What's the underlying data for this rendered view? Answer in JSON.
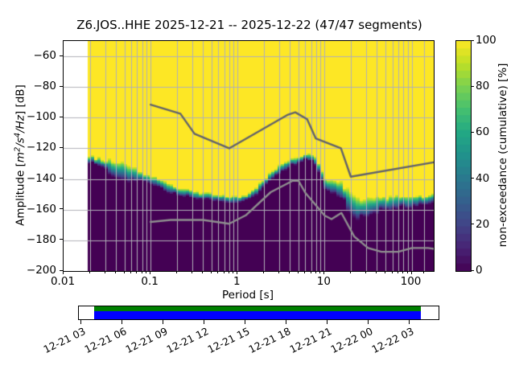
{
  "chart_data": {
    "type": "heatmap",
    "title": "Z6.JOS..HHE   2025-12-21 -- 2025-12-22  (47/47 segments)",
    "station": "Z6.JOS..HHE",
    "date_range": "2025-12-21 -- 2025-12-22",
    "segments": "47/47 segments",
    "xlabel": "Period [s]",
    "ylabel": "Amplitude [m²/s⁴/Hz] [dB]",
    "ylabel_parts": [
      {
        "t": "Amplitude [",
        "style": "n"
      },
      {
        "t": "m",
        "style": "i"
      },
      {
        "t": "2",
        "style": "isup"
      },
      {
        "t": "/",
        "style": "i"
      },
      {
        "t": "s",
        "style": "i"
      },
      {
        "t": "4",
        "style": "isup"
      },
      {
        "t": "/",
        "style": "i"
      },
      {
        "t": "Hz",
        "style": "i"
      },
      {
        "t": "] [dB]",
        "style": "n"
      }
    ],
    "colorbar_label": "non-exceedance (cumulative) [%]",
    "xlim": [
      0.01,
      179.5
    ],
    "ylim": [
      -200,
      -50
    ],
    "grid": true,
    "x_ticks": [
      0.01,
      0.1,
      1,
      10,
      100
    ],
    "x_tick_labels": [
      "0.01",
      "0.1",
      "1",
      "10",
      "100"
    ],
    "x_minor_extra": [
      140
    ],
    "y_ticks": [
      -60,
      -80,
      -100,
      -120,
      -140,
      -160,
      -180,
      -200
    ],
    "y_tick_labels": [
      "−60",
      "−80",
      "−100",
      "−120",
      "−140",
      "−160",
      "−180",
      "−200"
    ],
    "colorbar_ticks": [
      0,
      20,
      40,
      60,
      80,
      100
    ],
    "colorbar_tick_labels": [
      "0",
      "20",
      "40",
      "60",
      "80",
      "100"
    ],
    "colorbar_steps": 31,
    "period_range": [
      0.019,
      179
    ],
    "columns_per_decade": 26.6,
    "cumulative_boundary_p_db_halfwidth": [
      [
        0.019,
        -126.5,
        2.0
      ],
      [
        0.022,
        -127.5,
        2.0
      ],
      [
        0.025,
        -128.5,
        2.2
      ],
      [
        0.03,
        -130.5,
        3.0
      ],
      [
        0.035,
        -132.5,
        5.0
      ],
      [
        0.04,
        -134.0,
        6.0
      ],
      [
        0.05,
        -135.5,
        6.0
      ],
      [
        0.06,
        -137.0,
        4.5
      ],
      [
        0.07,
        -137.8,
        3.5
      ],
      [
        0.08,
        -138.8,
        3.0
      ],
      [
        0.1,
        -140.5,
        2.8
      ],
      [
        0.15,
        -145.0,
        2.5
      ],
      [
        0.2,
        -147.5,
        2.3
      ],
      [
        0.3,
        -150.0,
        2.2
      ],
      [
        0.5,
        -152.0,
        2.0
      ],
      [
        0.7,
        -153.2,
        2.0
      ],
      [
        1.0,
        -153.8,
        2.0
      ],
      [
        1.2,
        -152.3,
        2.0
      ],
      [
        1.4,
        -150.2,
        2.0
      ],
      [
        1.75,
        -146.3,
        2.2
      ],
      [
        2.15,
        -141.0,
        2.2
      ],
      [
        2.7,
        -135.5,
        2.2
      ],
      [
        3.3,
        -132.0,
        2.2
      ],
      [
        4.0,
        -129.5,
        2.0
      ],
      [
        5.0,
        -127.0,
        2.0
      ],
      [
        6.0,
        -125.6,
        2.0
      ],
      [
        6.5,
        -125.3,
        2.0
      ],
      [
        7.0,
        -125.7,
        2.0
      ],
      [
        7.5,
        -126.8,
        2.0
      ],
      [
        8.0,
        -129.0,
        2.2
      ],
      [
        9.0,
        -136.0,
        2.5
      ],
      [
        10.0,
        -142.8,
        3.0
      ],
      [
        12.0,
        -144.5,
        3.5
      ],
      [
        14.7,
        -146.5,
        4.0
      ],
      [
        16.3,
        -148.0,
        4.5
      ],
      [
        18.2,
        -152.0,
        5.5
      ],
      [
        21.0,
        -157.0,
        6.5
      ],
      [
        24.0,
        -158.8,
        6.0
      ],
      [
        30.0,
        -158.3,
        5.0
      ],
      [
        40.0,
        -156.7,
        4.5
      ],
      [
        50.0,
        -156.0,
        4.0
      ],
      [
        70.0,
        -155.2,
        3.5
      ],
      [
        100.0,
        -154.4,
        3.0
      ],
      [
        140.0,
        -153.7,
        2.6
      ],
      [
        179.0,
        -152.9,
        2.5
      ]
    ],
    "nhnm_line_p_db": [
      [
        0.1,
        -91.5
      ],
      [
        0.22,
        -97.4
      ],
      [
        0.32,
        -110.5
      ],
      [
        0.8,
        -120.0
      ],
      [
        3.8,
        -98.0
      ],
      [
        4.6,
        -96.5
      ],
      [
        6.3,
        -101.0
      ],
      [
        7.9,
        -113.5
      ],
      [
        15.4,
        -120.0
      ],
      [
        20.0,
        -138.5
      ],
      [
        179.0,
        -129.1
      ]
    ],
    "nlnm_line_p_db": [
      [
        0.1,
        -168.0
      ],
      [
        0.17,
        -166.7
      ],
      [
        0.4,
        -166.7
      ],
      [
        0.8,
        -169.2
      ],
      [
        1.24,
        -163.7
      ],
      [
        2.4,
        -148.6
      ],
      [
        4.3,
        -141.1
      ],
      [
        5.0,
        -141.1
      ],
      [
        6.0,
        -149.0
      ],
      [
        10.0,
        -163.8
      ],
      [
        12.0,
        -166.2
      ],
      [
        15.6,
        -162.1
      ],
      [
        21.9,
        -177.5
      ],
      [
        31.6,
        -185.0
      ],
      [
        45.0,
        -187.5
      ],
      [
        70.0,
        -187.5
      ],
      [
        101.0,
        -185.0
      ],
      [
        154.0,
        -185.0
      ],
      [
        179.0,
        -185.5
      ]
    ],
    "viridis_stops": [
      [
        0.0,
        "#440154"
      ],
      [
        0.1,
        "#482475"
      ],
      [
        0.2,
        "#414487"
      ],
      [
        0.3,
        "#355f8d"
      ],
      [
        0.4,
        "#2a788e"
      ],
      [
        0.5,
        "#21918c"
      ],
      [
        0.6,
        "#22a884"
      ],
      [
        0.7,
        "#44bf70"
      ],
      [
        0.8,
        "#7ad151"
      ],
      [
        0.9,
        "#bddf26"
      ],
      [
        1.0,
        "#fde725"
      ]
    ],
    "colors": {
      "mesh_top": "#fde725",
      "mesh_bottom": "#440154",
      "grid": "#b0b0b8",
      "nhnm": "#63636b",
      "nlnm": "#8f8f8f",
      "coverage_green": "#008000",
      "coverage_blue": "#0000ff",
      "spine": "#000000"
    },
    "timeline": {
      "tick_labels": [
        "12-21 03",
        "12-21 06",
        "12-21 09",
        "12-21 12",
        "12-21 15",
        "12-21 18",
        "12-21 21",
        "12-22 00",
        "12-22 03"
      ],
      "bar_start_frac": 0.0445,
      "bar_end_frac": 0.9487
    }
  }
}
